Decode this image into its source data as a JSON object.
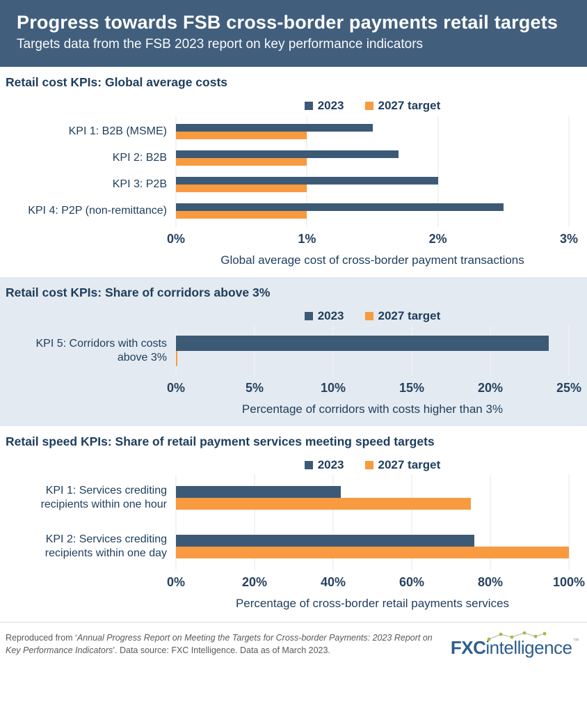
{
  "header": {
    "title": "Progress towards FSB cross-border payments retail targets",
    "subtitle": "Targets data from the FSB 2023 report on key performance indicators"
  },
  "legend": {
    "y2023": "2023",
    "target": "2027 target"
  },
  "colors": {
    "navy": "#3C5A76",
    "orange": "#F89A40",
    "header_bg": "#415F7D",
    "section_alt_bg": "#E3EAF1",
    "heading_text": "#1E3D5C",
    "gridline": "#E7E7E7",
    "logo_blue": "#2E5E8C",
    "logo_green": "#9CBF3D"
  },
  "chart_data": [
    {
      "id": "cost",
      "type": "bar",
      "heading": "Retail cost KPIs: Global average costs",
      "categories": [
        "KPI 1: B2B (MSME)",
        "KPI 2: B2B",
        "KPI 3: P2B",
        "KPI 4: P2P (non-remittance)"
      ],
      "series": [
        {
          "name": "2023",
          "values": [
            1.5,
            1.7,
            2.0,
            2.5
          ]
        },
        {
          "name": "2027 target",
          "values": [
            1.0,
            1.0,
            1.0,
            1.0
          ]
        }
      ],
      "xmax": 3,
      "ticks": [
        "0%",
        "1%",
        "2%",
        "3%"
      ],
      "xlabel": "Global average cost of cross-border payment transactions",
      "legend_position": "top-center",
      "grid": "vertical"
    },
    {
      "id": "corridors",
      "type": "bar",
      "heading": "Retail cost KPIs: Share of corridors above 3%",
      "categories": [
        "KPI 5: Corridors with costs above 3%"
      ],
      "series": [
        {
          "name": "2023",
          "values": [
            23.7
          ]
        },
        {
          "name": "2027 target",
          "values": [
            0.1
          ]
        }
      ],
      "xmax": 25,
      "ticks": [
        "0%",
        "5%",
        "10%",
        "15%",
        "20%",
        "25%"
      ],
      "xlabel": "Percentage of corridors with costs higher than 3%",
      "legend_position": "top-center",
      "grid": "vertical"
    },
    {
      "id": "speed",
      "type": "bar",
      "heading": "Retail speed KPIs: Share of retail payment services meeting speed targets",
      "categories": [
        "KPI 1: Services crediting recipients within one hour",
        "KPI 2: Services crediting recipients within one day"
      ],
      "series": [
        {
          "name": "2023",
          "values": [
            42,
            76
          ]
        },
        {
          "name": "2027 target",
          "values": [
            75,
            100
          ]
        }
      ],
      "xmax": 100,
      "ticks": [
        "0%",
        "20%",
        "40%",
        "60%",
        "80%",
        "100%"
      ],
      "xlabel": "Percentage of cross-border retail payments services",
      "legend_position": "top-center",
      "grid": "vertical"
    }
  ],
  "footer": {
    "source_prefix": "Reproduced from ‘",
    "source_title": "Annual Progress Report on Meeting the Targets for Cross-border Payments: 2023 Report on Key Performance Indicators",
    "source_suffix": "’. Data source: FXC Intelligence. Data as of March 2023.",
    "logo_fxc": "FXC",
    "logo_intelligence": "intelligence",
    "logo_tm": "™"
  }
}
